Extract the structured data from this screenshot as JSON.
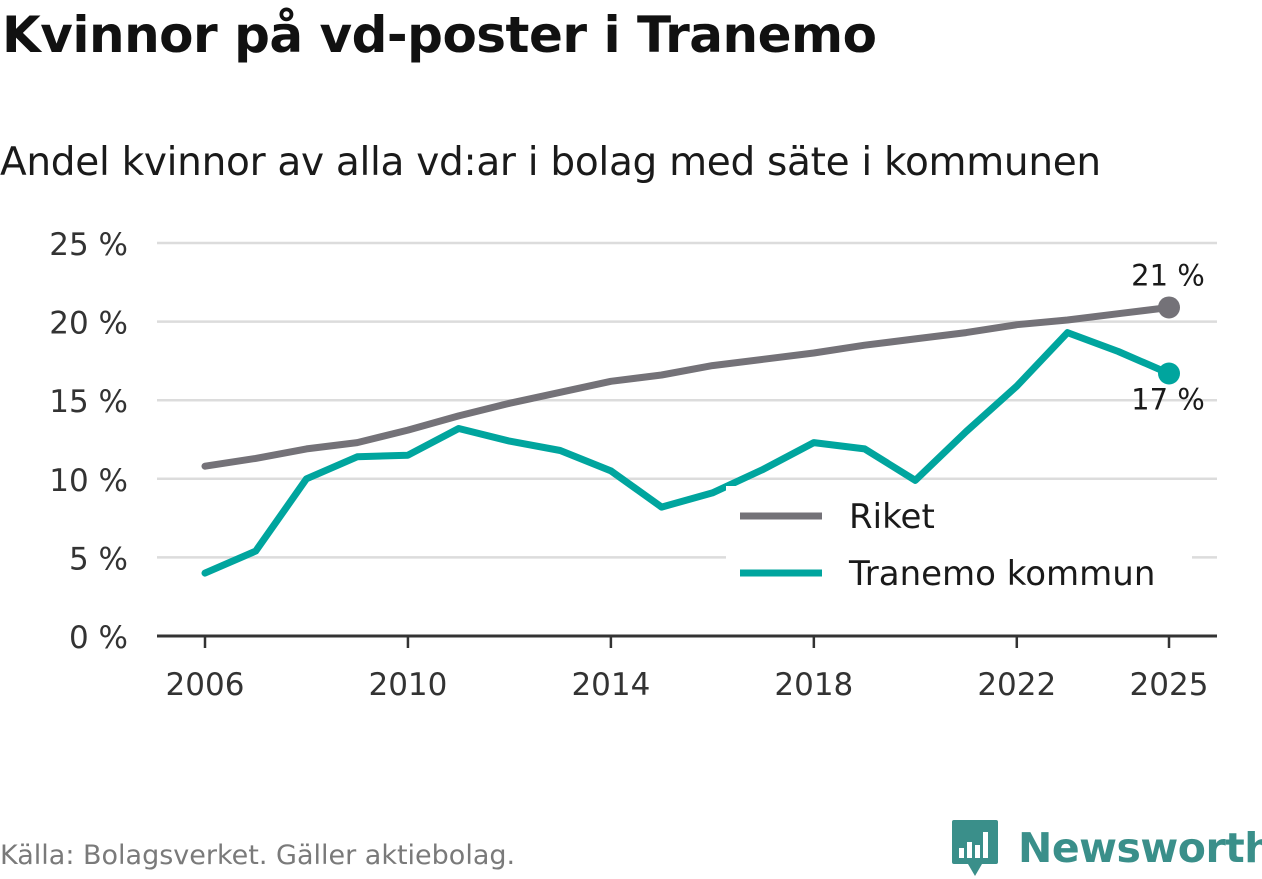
{
  "title": "Kvinnor på vd-poster i Tranemo",
  "subtitle": "Andel kvinnor av alla vd:ar i bolag med säte i kommunen",
  "source": "Källa: Bolagsverket. Gäller aktiebolag.",
  "brand": "Newsworthy",
  "colors": {
    "riket": "#747278",
    "tranemo": "#00a59e",
    "grid": "#dcdcdc",
    "axis": "#333333",
    "brand": "#3a8f8a"
  },
  "chart_data": {
    "type": "line",
    "title": "Kvinnor på vd-poster i Tranemo",
    "ylim": [
      0,
      25
    ],
    "xlim": [
      2006,
      2025
    ],
    "y_ticks": [
      0,
      5,
      10,
      15,
      20,
      25
    ],
    "y_tick_labels": [
      "0 %",
      "5 %",
      "10 %",
      "15 %",
      "20 %",
      "25 %"
    ],
    "x_ticks": [
      2006,
      2010,
      2014,
      2018,
      2022,
      2025
    ],
    "x_tick_labels": [
      "2006",
      "2010",
      "2014",
      "2018",
      "2022",
      "2025"
    ],
    "grid": true,
    "legend_position": "bottom-right",
    "x": [
      2006,
      2007,
      2008,
      2009,
      2010,
      2011,
      2012,
      2013,
      2014,
      2015,
      2016,
      2017,
      2018,
      2019,
      2020,
      2021,
      2022,
      2023,
      2024,
      2025
    ],
    "series": [
      {
        "name": "Riket",
        "color": "#747278",
        "values": [
          10.8,
          11.3,
          11.9,
          12.3,
          13.1,
          14.0,
          14.8,
          15.5,
          16.2,
          16.6,
          17.2,
          17.6,
          18.0,
          18.5,
          18.9,
          19.3,
          19.8,
          20.1,
          20.5,
          20.9
        ],
        "end_label": "21 %"
      },
      {
        "name": "Tranemo kommun",
        "color": "#00a59e",
        "values": [
          4.0,
          5.4,
          10.0,
          11.4,
          11.5,
          13.2,
          12.4,
          11.8,
          10.5,
          8.2,
          9.1,
          10.6,
          12.3,
          11.9,
          9.9,
          13.0,
          15.9,
          19.3,
          18.1,
          16.7
        ],
        "end_label": "17 %"
      }
    ]
  }
}
